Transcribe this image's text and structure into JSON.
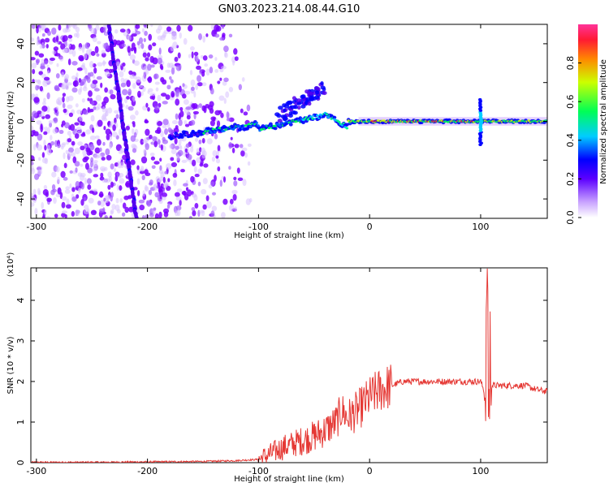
{
  "title": "GN03.2023.214.08.44.G10",
  "chart_data": [
    {
      "type": "heatmap",
      "name": "spectrogram",
      "xlabel": "Height of straight line (km)",
      "ylabel": "Frequency (Hz)",
      "xlim": [
        -305,
        160
      ],
      "ylim": [
        -50,
        50
      ],
      "xticks": [
        -300,
        -200,
        -100,
        0,
        100
      ],
      "yticks": [
        -40,
        -20,
        0,
        20,
        40
      ],
      "colorbar": {
        "label": "Normalized spectral amplitude",
        "range": [
          0,
          1
        ],
        "ticks": [
          "0.0",
          "0.2",
          "0.4",
          "0.6",
          "0.8"
        ]
      }
    },
    {
      "type": "line",
      "name": "snr",
      "xlabel": "Height of straight line (km)",
      "ylabel": "SNR (10 * v/v)",
      "yscale_note": "(x10⁴)",
      "xlim": [
        -305,
        160
      ],
      "ylim": [
        0,
        4.8
      ],
      "xticks": [
        -300,
        -200,
        -100,
        0,
        100
      ],
      "yticks": [
        0,
        1,
        2,
        3,
        4
      ],
      "color": "#e53935",
      "series": [
        {
          "x": [
            -305,
            -250,
            -200,
            -150,
            -120,
            -100,
            -90,
            -80,
            -70,
            -60,
            -50,
            -40,
            -30,
            -25,
            -20,
            -10,
            0,
            10,
            20,
            30,
            40,
            50,
            60,
            70,
            80,
            90,
            100,
            104,
            106,
            108,
            110,
            120,
            130,
            140,
            150,
            160
          ],
          "y": [
            0.01,
            0.01,
            0.02,
            0.03,
            0.05,
            0.08,
            0.2,
            0.35,
            0.45,
            0.55,
            0.65,
            0.8,
            1.0,
            1.3,
            1.1,
            1.3,
            1.6,
            1.8,
            1.9,
            2.0,
            2.0,
            2.0,
            2.0,
            2.0,
            2.0,
            2.0,
            2.0,
            1.7,
            4.8,
            4.1,
            1.9,
            1.9,
            1.9,
            1.9,
            1.8,
            1.75
          ]
        }
      ]
    }
  ]
}
